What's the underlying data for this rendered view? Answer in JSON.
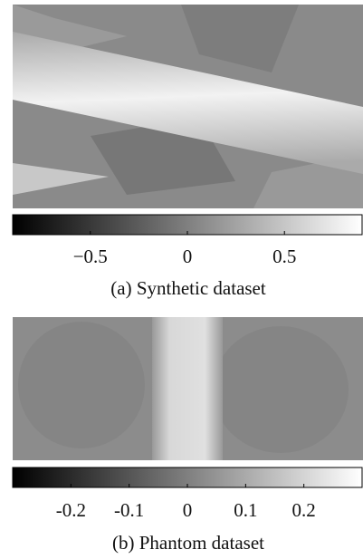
{
  "panels": [
    {
      "colorbar": {
        "lim": [
          -0.9,
          0.9
        ],
        "ticks": [
          {
            "value": -0.5,
            "label": "−0.5"
          },
          0,
          0.5
        ]
      },
      "caption": "(a) Synthetic dataset"
    },
    {
      "colorbar": {
        "lim": [
          -0.3,
          0.3
        ],
        "ticks": [
          {
            "value": -0.2,
            "label": "-0.2"
          },
          {
            "value": -0.1,
            "label": "-0.1"
          },
          0,
          0.1,
          0.2
        ]
      },
      "caption": "(b) Phantom dataset"
    }
  ]
}
